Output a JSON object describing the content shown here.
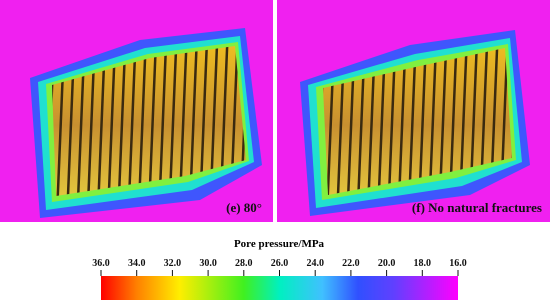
{
  "panels": [
    {
      "label": "(e) 80°"
    },
    {
      "label": "(f) No natural fractures"
    }
  ],
  "colorbar": {
    "title": "Pore pressure/MPa",
    "ticks": [
      {
        "value": 36,
        "label": "36.0"
      },
      {
        "value": 34,
        "label": "34.0"
      },
      {
        "value": 32,
        "label": "32.0"
      },
      {
        "value": 30,
        "label": "30.0"
      },
      {
        "value": 28,
        "label": "28.0"
      },
      {
        "value": 26,
        "label": "26.0"
      },
      {
        "value": 24,
        "label": "24.0"
      },
      {
        "value": 22,
        "label": "22.0"
      },
      {
        "value": 20,
        "label": "20.0"
      },
      {
        "value": 18,
        "label": "18.0"
      },
      {
        "value": 16,
        "label": "16.0"
      }
    ]
  }
}
